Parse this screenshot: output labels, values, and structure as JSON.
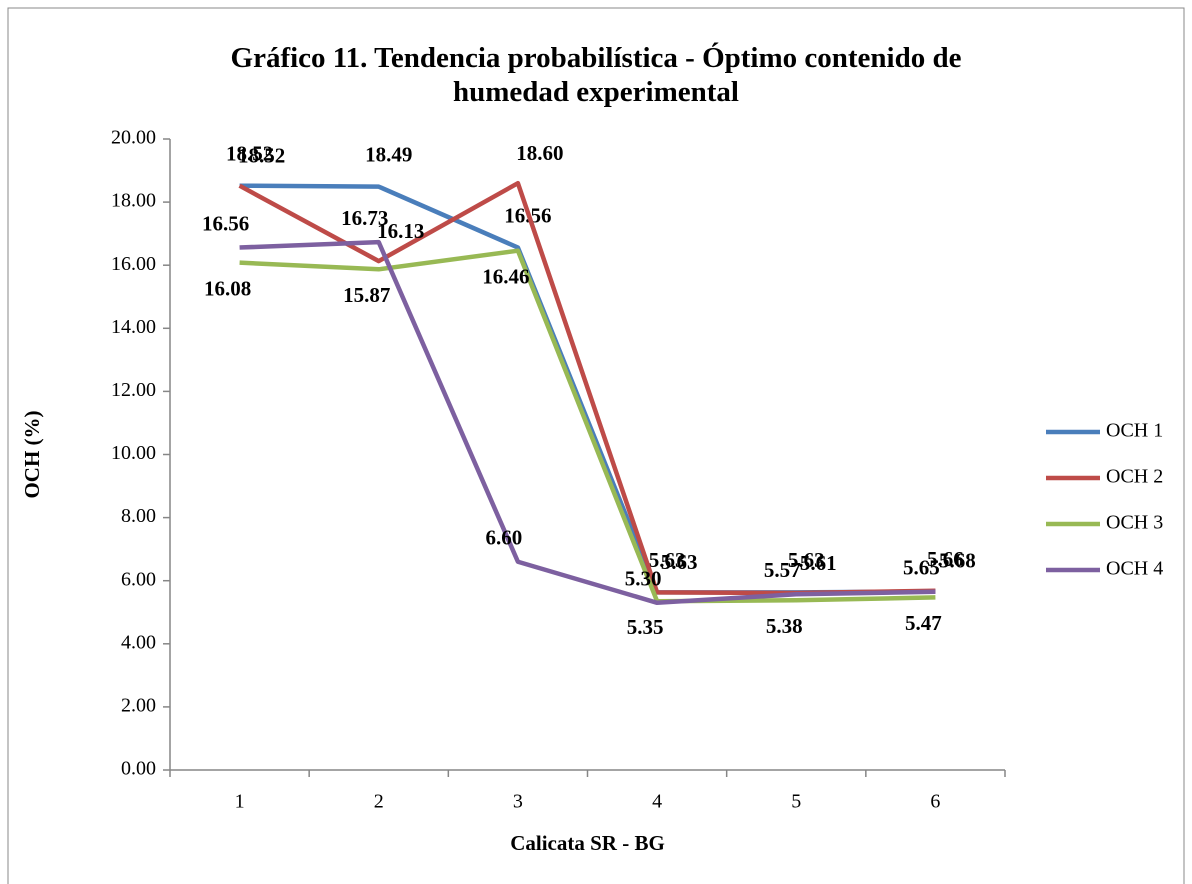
{
  "chart_data": {
    "type": "line",
    "title": "Gráfico 11. Tendencia probabilística - Óptimo contenido de humedad experimental",
    "x_label": "Calicata SR - BG",
    "y_label": "OCH (%)",
    "categories": [
      "1",
      "2",
      "3",
      "4",
      "5",
      "6"
    ],
    "series": [
      {
        "name": "OCH 1",
        "color": "#4a7ebb",
        "values": [
          18.52,
          18.49,
          16.56,
          5.63,
          5.63,
          5.66
        ],
        "value_labels": [
          "18.52",
          "18.49",
          "16.56",
          "5.63",
          "5.63",
          "5.66"
        ]
      },
      {
        "name": "OCH 2",
        "color": "#be4b48",
        "values": [
          18.52,
          16.13,
          18.6,
          5.63,
          5.61,
          5.68
        ],
        "value_labels": [
          "18.52",
          "16.13",
          "18.60",
          "5.63",
          "5.61",
          "5.68"
        ]
      },
      {
        "name": "OCH 3",
        "color": "#98b954",
        "values": [
          16.08,
          15.87,
          16.46,
          5.35,
          5.38,
          5.47
        ],
        "value_labels": [
          "16.08",
          "15.87",
          "16.46",
          "5.35",
          "5.38",
          "5.47"
        ]
      },
      {
        "name": "OCH 4",
        "color": "#7d60a0",
        "values": [
          16.56,
          16.73,
          6.6,
          5.3,
          5.57,
          5.65
        ],
        "value_labels": [
          "16.56",
          "16.73",
          "6.60",
          "5.30",
          "5.57",
          "5.65"
        ]
      }
    ],
    "ylim": [
      0,
      20
    ],
    "yticks": [
      {
        "value": 0,
        "label": "0.00"
      },
      {
        "value": 2,
        "label": "2.00"
      },
      {
        "value": 4,
        "label": "4.00"
      },
      {
        "value": 6,
        "label": "6.00"
      },
      {
        "value": 8,
        "label": "8.00"
      },
      {
        "value": 10,
        "label": "10.00"
      },
      {
        "value": 12,
        "label": "12.00"
      },
      {
        "value": 14,
        "label": "14.00"
      },
      {
        "value": 16,
        "label": "16.00"
      },
      {
        "value": 18,
        "label": "18.00"
      },
      {
        "value": 20,
        "label": "20.00"
      }
    ],
    "legend": "right"
  }
}
